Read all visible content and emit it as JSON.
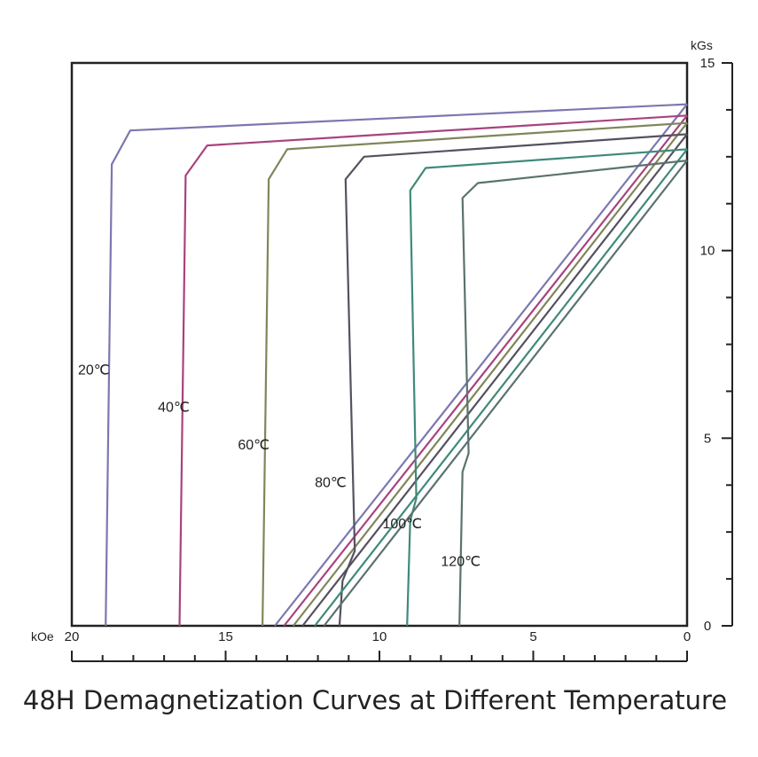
{
  "chart_data": {
    "type": "line",
    "title": "48H Demagnetization Curves at Different Temperature",
    "x_unit": "kOe",
    "y_unit": "kGs",
    "x_ticks": [
      20,
      15,
      10,
      5,
      0
    ],
    "y_ticks": [
      0,
      5,
      10,
      15
    ],
    "xlim": [
      20,
      0
    ],
    "ylim": [
      0,
      15
    ],
    "x_reversed": true,
    "grid": false,
    "series": [
      {
        "name": "20℃",
        "color": "#7b78b0",
        "bh": [
          [
            18.9,
            0
          ],
          [
            18.7,
            12.3
          ],
          [
            18.1,
            13.2
          ],
          [
            0,
            13.9
          ]
        ],
        "recoil": [
          [
            13.4,
            0
          ],
          [
            0,
            13.9
          ]
        ]
      },
      {
        "name": "40℃",
        "color": "#a8437e",
        "bh": [
          [
            16.5,
            0
          ],
          [
            16.3,
            12.0
          ],
          [
            15.6,
            12.8
          ],
          [
            0,
            13.6
          ]
        ],
        "recoil": [
          [
            13.1,
            0
          ],
          [
            0,
            13.6
          ]
        ]
      },
      {
        "name": "60℃",
        "color": "#80865a",
        "bh": [
          [
            13.8,
            0
          ],
          [
            13.6,
            11.9
          ],
          [
            13.0,
            12.7
          ],
          [
            0,
            13.4
          ]
        ],
        "recoil": [
          [
            12.8,
            0
          ],
          [
            0,
            13.4
          ]
        ]
      },
      {
        "name": "80℃",
        "color": "#55515f",
        "bh": [
          [
            11.3,
            0
          ],
          [
            11.2,
            1.2
          ],
          [
            10.8,
            2.0
          ],
          [
            11.1,
            11.9
          ],
          [
            10.5,
            12.5
          ],
          [
            0,
            13.1
          ]
        ],
        "recoil": [
          [
            12.5,
            0
          ],
          [
            0,
            13.1
          ]
        ]
      },
      {
        "name": "100℃",
        "color": "#3f8a79",
        "bh": [
          [
            9.1,
            0
          ],
          [
            9.0,
            2.8
          ],
          [
            8.8,
            3.4
          ],
          [
            9.0,
            11.6
          ],
          [
            8.5,
            12.2
          ],
          [
            0,
            12.7
          ]
        ],
        "recoil": [
          [
            12.1,
            0
          ],
          [
            0,
            12.7
          ]
        ]
      },
      {
        "name": "120℃",
        "color": "#5b7270",
        "bh": [
          [
            7.4,
            0
          ],
          [
            7.3,
            4.1
          ],
          [
            7.1,
            4.6
          ],
          [
            7.3,
            11.4
          ],
          [
            6.8,
            11.8
          ],
          [
            0,
            12.4
          ]
        ],
        "recoil": [
          [
            11.8,
            0
          ],
          [
            0,
            12.4
          ]
        ]
      }
    ],
    "curve_labels": [
      {
        "text": "20℃",
        "x": 19.8,
        "y": 6.7
      },
      {
        "text": "40℃",
        "x": 17.2,
        "y": 5.7
      },
      {
        "text": "60℃",
        "x": 14.6,
        "y": 4.7
      },
      {
        "text": "80℃",
        "x": 12.1,
        "y": 3.7
      },
      {
        "text": "100℃",
        "x": 9.9,
        "y": 2.6
      },
      {
        "text": "120℃",
        "x": 8.0,
        "y": 1.6
      }
    ]
  }
}
